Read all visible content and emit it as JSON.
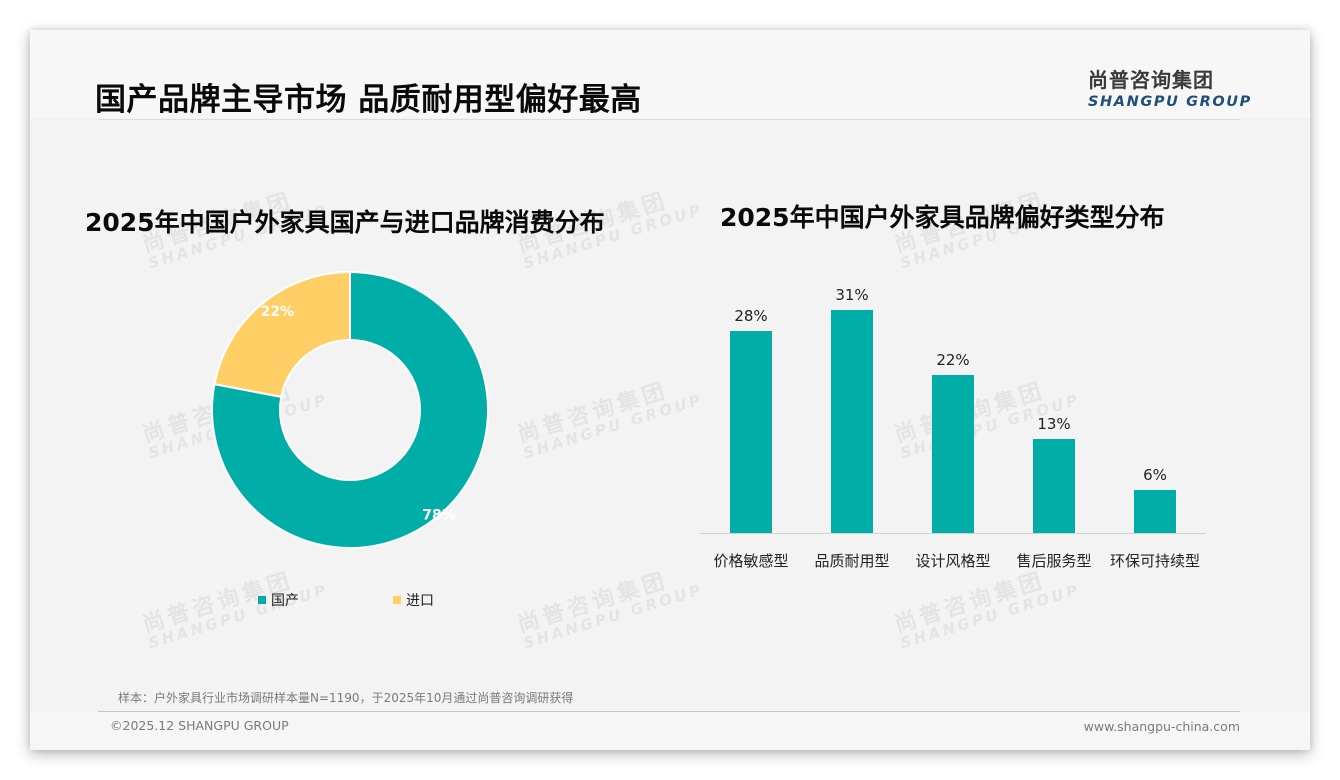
{
  "header": {
    "title": "国产品牌主导市场 品质耐用型偏好最高",
    "logo_cn": "尚普咨询集团",
    "logo_en": "SHANGPU GROUP"
  },
  "watermark": {
    "cn": "尚普咨询集团",
    "en": "SHANGPU GROUP"
  },
  "colors": {
    "teal": "#00aea7",
    "yellow": "#ffcf66",
    "logo_blue": "#1f4e79"
  },
  "left_chart": {
    "title": "2025年中国户外家具国产与进口品牌消费分布",
    "slices": [
      {
        "label": "国产",
        "value": 78,
        "display": "78%",
        "color": "#00aea7"
      },
      {
        "label": "进口",
        "value": 22,
        "display": "22%",
        "color": "#ffcf66"
      }
    ],
    "legend": [
      {
        "label": "国产",
        "color": "#00aea7"
      },
      {
        "label": "进口",
        "color": "#ffcf66"
      }
    ]
  },
  "right_chart": {
    "title": "2025年中国户外家具品牌偏好类型分布",
    "bars": [
      {
        "category": "价格敏感型",
        "value": 28,
        "display": "28%"
      },
      {
        "category": "品质耐用型",
        "value": 31,
        "display": "31%"
      },
      {
        "category": "设计风格型",
        "value": 22,
        "display": "22%"
      },
      {
        "category": "售后服务型",
        "value": 13,
        "display": "13%"
      },
      {
        "category": "环保可持续型",
        "value": 6,
        "display": "6%"
      }
    ]
  },
  "chart_data": [
    {
      "type": "pie",
      "variant": "donut",
      "title": "2025年中国户外家具国产与进口品牌消费分布",
      "categories": [
        "国产",
        "进口"
      ],
      "values": [
        78,
        22
      ],
      "unit": "%",
      "legend_position": "bottom"
    },
    {
      "type": "bar",
      "title": "2025年中国户外家具品牌偏好类型分布",
      "categories": [
        "价格敏感型",
        "品质耐用型",
        "设计风格型",
        "售后服务型",
        "环保可持续型"
      ],
      "values": [
        28,
        31,
        22,
        13,
        6
      ],
      "unit": "%",
      "xlabel": "",
      "ylabel": "",
      "ylim": [
        0,
        35
      ],
      "grid": false,
      "data_labels": true
    }
  ],
  "footer": {
    "sample_note": "样本：户外家具行业市场调研样本量N=1190，于2025年10月通过尚普咨询调研获得",
    "copyright": "©2025.12 SHANGPU GROUP",
    "website": "www.shangpu-china.com"
  }
}
